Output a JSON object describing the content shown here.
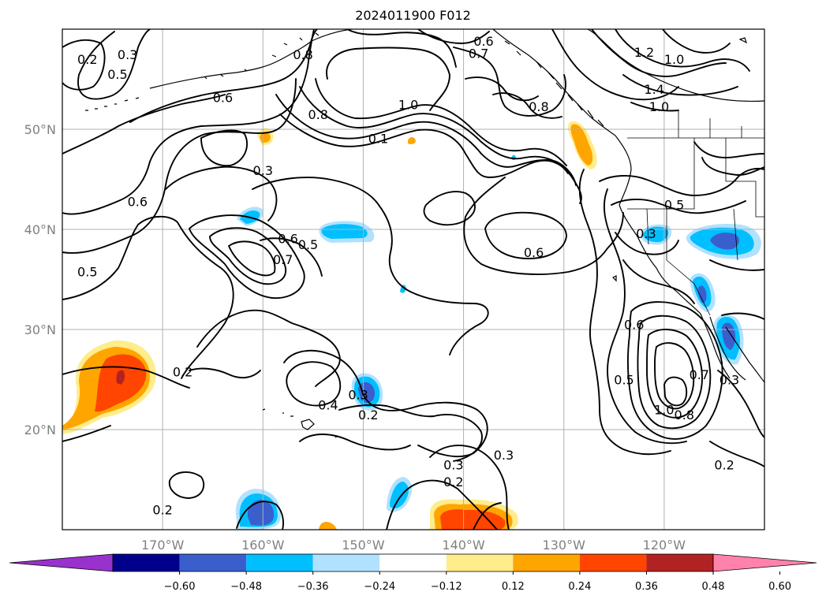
{
  "title": "2024011900 F012",
  "lat_labels": [
    {
      "text": "50°N",
      "lat": 50
    },
    {
      "text": "40°N",
      "lat": 40
    },
    {
      "text": "30°N",
      "lat": 30
    },
    {
      "text": "20°N",
      "lat": 20
    }
  ],
  "lon_labels": [
    {
      "text": "170°W",
      "lon": -170
    },
    {
      "text": "160°W",
      "lon": -160
    },
    {
      "text": "150°W",
      "lon": -150
    },
    {
      "text": "140°W",
      "lon": -140
    },
    {
      "text": "130°W",
      "lon": -130
    },
    {
      "text": "120°W",
      "lon": -120
    }
  ],
  "colorbar": {
    "colors": [
      "#9932cc",
      "#00008b",
      "#3a5fcd",
      "#00bfff",
      "#b0e2ff",
      "#ffffff",
      "#ffec8b",
      "#ffa500",
      "#ff4500",
      "#b22222",
      "#ff82ab"
    ],
    "tick_labels": [
      "−0.60",
      "−0.48",
      "−0.36",
      "−0.24",
      "−0.12",
      "0.12",
      "0.24",
      "0.36",
      "0.48",
      "0.60"
    ]
  },
  "contour_labels": [
    {
      "text": "0.2",
      "lon": -177.5,
      "lat": 57.0
    },
    {
      "text": "0.3",
      "lon": -173.5,
      "lat": 57.5
    },
    {
      "text": "0.5",
      "lon": -174.5,
      "lat": 55.5
    },
    {
      "text": "0.6",
      "lon": -164.0,
      "lat": 53.2
    },
    {
      "text": "0.8",
      "lon": -156.0,
      "lat": 57.5
    },
    {
      "text": "0.6",
      "lon": -138.0,
      "lat": 58.8
    },
    {
      "text": "0.7",
      "lon": -138.5,
      "lat": 57.6
    },
    {
      "text": "0.8",
      "lon": -154.5,
      "lat": 51.5
    },
    {
      "text": "1.0",
      "lon": -145.5,
      "lat": 52.5
    },
    {
      "text": "0.1",
      "lon": -148.5,
      "lat": 49.1
    },
    {
      "text": "0.8",
      "lon": -132.5,
      "lat": 52.3
    },
    {
      "text": "1.2",
      "lon": -122.0,
      "lat": 57.7
    },
    {
      "text": "1.0",
      "lon": -119.0,
      "lat": 57.0
    },
    {
      "text": "1.4",
      "lon": -121.0,
      "lat": 54.0
    },
    {
      "text": "1.0",
      "lon": -120.5,
      "lat": 52.3
    },
    {
      "text": "0.3",
      "lon": -160.0,
      "lat": 45.9
    },
    {
      "text": "0.6",
      "lon": -172.5,
      "lat": 42.8
    },
    {
      "text": "0.5",
      "lon": -119.0,
      "lat": 42.5
    },
    {
      "text": "0.3",
      "lon": -121.8,
      "lat": 39.6
    },
    {
      "text": "0.6",
      "lon": -157.5,
      "lat": 39.1
    },
    {
      "text": "0.5",
      "lon": -155.5,
      "lat": 38.5
    },
    {
      "text": "0.7",
      "lon": -158.0,
      "lat": 37.0
    },
    {
      "text": "0.6",
      "lon": -133.0,
      "lat": 37.7
    },
    {
      "text": "0.5",
      "lon": -177.5,
      "lat": 35.8
    },
    {
      "text": "0.6",
      "lon": -123.0,
      "lat": 30.5
    },
    {
      "text": "0.5",
      "lon": -124.0,
      "lat": 25.0
    },
    {
      "text": "0.7",
      "lon": -116.5,
      "lat": 25.5
    },
    {
      "text": "0.3",
      "lon": -113.5,
      "lat": 25.0
    },
    {
      "text": "1.0",
      "lon": -120.0,
      "lat": 22.0
    },
    {
      "text": "0.8",
      "lon": -118.0,
      "lat": 21.5
    },
    {
      "text": "0.2",
      "lon": -168.0,
      "lat": 25.8
    },
    {
      "text": "0.4",
      "lon": -153.5,
      "lat": 22.5
    },
    {
      "text": "0.3",
      "lon": -150.5,
      "lat": 23.5
    },
    {
      "text": "0.2",
      "lon": -149.5,
      "lat": 21.5
    },
    {
      "text": "0.3",
      "lon": -141.0,
      "lat": 16.5
    },
    {
      "text": "0.3",
      "lon": -136.0,
      "lat": 17.5
    },
    {
      "text": "0.2",
      "lon": -141.0,
      "lat": 14.8
    },
    {
      "text": "0.2",
      "lon": -114.0,
      "lat": 16.5
    },
    {
      "text": "0.2",
      "lon": -170.0,
      "lat": 12.0
    }
  ]
}
